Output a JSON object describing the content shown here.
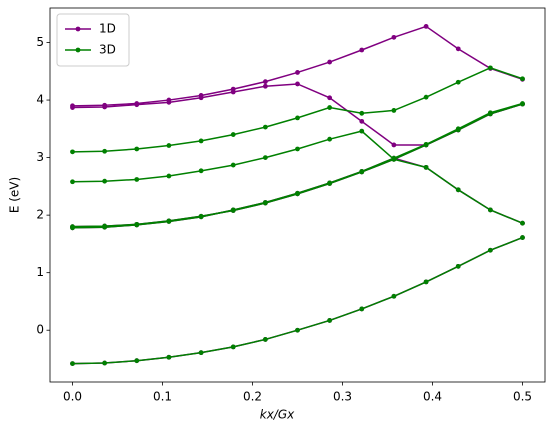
{
  "chart_data": {
    "type": "line",
    "xlabel": "kx/Gx",
    "ylabel": "E (eV)",
    "x": [
      0,
      0.0357,
      0.0714,
      0.1071,
      0.1429,
      0.1786,
      0.2143,
      0.25,
      0.2857,
      0.3214,
      0.3571,
      0.3929,
      0.4286,
      0.4643,
      0.5
    ],
    "series": [
      {
        "name": "1D",
        "color": "#800080",
        "values": [
          [
            -0.58,
            -0.57,
            -0.53,
            -0.47,
            -0.39,
            -0.29,
            -0.16,
            0.0,
            0.17,
            0.37,
            0.59,
            0.84,
            1.11,
            1.39,
            1.61
          ],
          [
            1.8,
            1.81,
            1.84,
            1.9,
            1.98,
            2.08,
            2.21,
            2.37,
            2.55,
            2.75,
            2.97,
            3.22,
            3.48,
            3.76,
            3.93
          ],
          [
            1.78,
            1.79,
            1.83,
            1.89,
            1.97,
            2.09,
            2.22,
            2.38,
            2.56,
            2.76,
            2.99,
            2.83,
            2.44,
            2.09,
            1.86
          ],
          [
            3.9,
            3.91,
            3.94,
            4.0,
            4.08,
            4.19,
            4.32,
            4.48,
            4.66,
            4.87,
            5.09,
            5.28,
            4.89,
            4.55,
            4.36
          ],
          [
            3.87,
            3.88,
            3.92,
            3.96,
            4.04,
            4.14,
            4.24,
            4.28,
            4.04,
            3.63,
            3.22,
            3.22,
            3.48,
            3.76,
            3.93
          ]
        ]
      },
      {
        "name": "3D",
        "color": "#008000",
        "values": [
          [
            -0.58,
            -0.57,
            -0.53,
            -0.47,
            -0.39,
            -0.29,
            -0.16,
            0.0,
            0.17,
            0.37,
            0.59,
            0.84,
            1.11,
            1.39,
            1.61
          ],
          [
            1.8,
            1.81,
            1.84,
            1.9,
            1.98,
            2.08,
            2.21,
            2.37,
            2.55,
            2.75,
            2.97,
            3.22,
            3.48,
            3.76,
            3.93
          ],
          [
            1.78,
            1.79,
            1.83,
            1.89,
            1.97,
            2.09,
            2.22,
            2.38,
            2.56,
            2.76,
            2.99,
            3.23,
            3.5,
            3.78,
            3.94
          ],
          [
            2.58,
            2.59,
            2.62,
            2.68,
            2.77,
            2.87,
            3.0,
            3.15,
            3.32,
            3.46,
            2.97,
            2.83,
            2.44,
            2.09,
            1.86
          ],
          [
            3.1,
            3.11,
            3.15,
            3.21,
            3.29,
            3.4,
            3.53,
            3.69,
            3.87,
            3.77,
            3.82,
            4.05,
            4.31,
            4.56,
            4.37
          ]
        ]
      }
    ],
    "xlim": [
      -0.025,
      0.525
    ],
    "ylim": [
      -0.9,
      5.6
    ],
    "xticks": [
      {
        "value": 0,
        "label": "0.0"
      },
      0.1,
      0.2,
      0.3,
      0.4,
      0.5
    ],
    "yticks": [
      0,
      1,
      2,
      3,
      4,
      5
    ],
    "legend": "upper left"
  }
}
